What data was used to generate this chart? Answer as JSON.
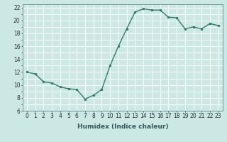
{
  "x": [
    0,
    1,
    2,
    3,
    4,
    5,
    6,
    7,
    8,
    9,
    10,
    11,
    12,
    13,
    14,
    15,
    16,
    17,
    18,
    19,
    20,
    21,
    22,
    23
  ],
  "y": [
    12.0,
    11.7,
    10.5,
    10.3,
    9.7,
    9.4,
    9.3,
    7.8,
    8.4,
    9.3,
    13.0,
    16.0,
    18.7,
    21.3,
    21.8,
    21.6,
    21.6,
    20.5,
    20.4,
    18.7,
    19.0,
    18.7,
    19.5,
    19.2
  ],
  "line_color": "#2d7d6e",
  "marker_color": "#2d7d6e",
  "bg_color": "#cce8e5",
  "grid_color": "#ffffff",
  "xlabel": "Humidex (Indice chaleur)",
  "xlim": [
    -0.5,
    23.5
  ],
  "ylim": [
    6,
    22.5
  ],
  "yticks": [
    6,
    8,
    10,
    12,
    14,
    16,
    18,
    20,
    22
  ],
  "xticks": [
    0,
    1,
    2,
    3,
    4,
    5,
    6,
    7,
    8,
    9,
    10,
    11,
    12,
    13,
    14,
    15,
    16,
    17,
    18,
    19,
    20,
    21,
    22,
    23
  ],
  "tick_fontsize": 5.5,
  "label_fontsize": 6.5,
  "linewidth": 1.0,
  "markersize": 2.0
}
